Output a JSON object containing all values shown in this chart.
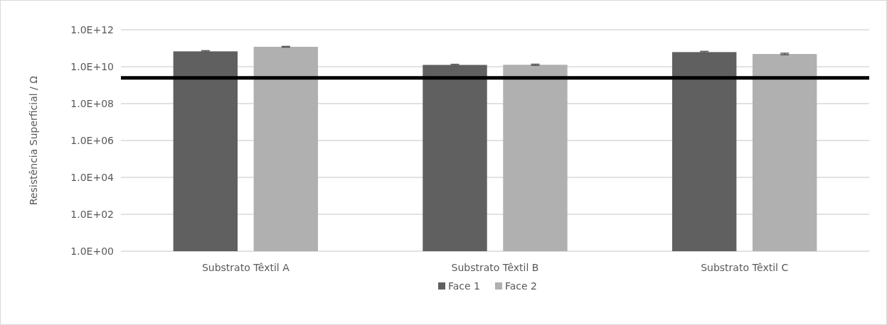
{
  "chart_data": {
    "type": "bar",
    "ylabel": "Resistência Superficial / Ω",
    "categories": [
      "Substrato Têxtil A",
      "Substrato Têxtil B",
      "Substrato Têxtil C"
    ],
    "series": [
      {
        "name": "Face 1",
        "color": "#606060",
        "values": [
          68000000000,
          12500000000,
          62000000000
        ],
        "errors": [
          6000000000,
          1000000000,
          6000000000
        ]
      },
      {
        "name": "Face 2",
        "color": "#b0b0b0",
        "values": [
          120000000000,
          12700000000,
          49000000000
        ],
        "errors": [
          6000000000,
          1000000000,
          5000000000
        ]
      }
    ],
    "log": true,
    "ylim": [
      1,
      1000000000000
    ],
    "yticks": [
      {
        "value": 1,
        "label": "1.0E+00"
      },
      {
        "value": 100,
        "label": "1.0E+02"
      },
      {
        "value": 10000,
        "label": "1.0E+04"
      },
      {
        "value": 1000000,
        "label": "1.0E+06"
      },
      {
        "value": 100000000,
        "label": "1.0E+08"
      },
      {
        "value": 10000000000,
        "label": "1.0E+10"
      },
      {
        "value": 1000000000000,
        "label": "1.0E+12"
      }
    ],
    "grid": "y",
    "legend": "bottom",
    "ref_lines": [
      {
        "axis": "y",
        "value": 2500000000,
        "color": "#000000"
      }
    ]
  }
}
